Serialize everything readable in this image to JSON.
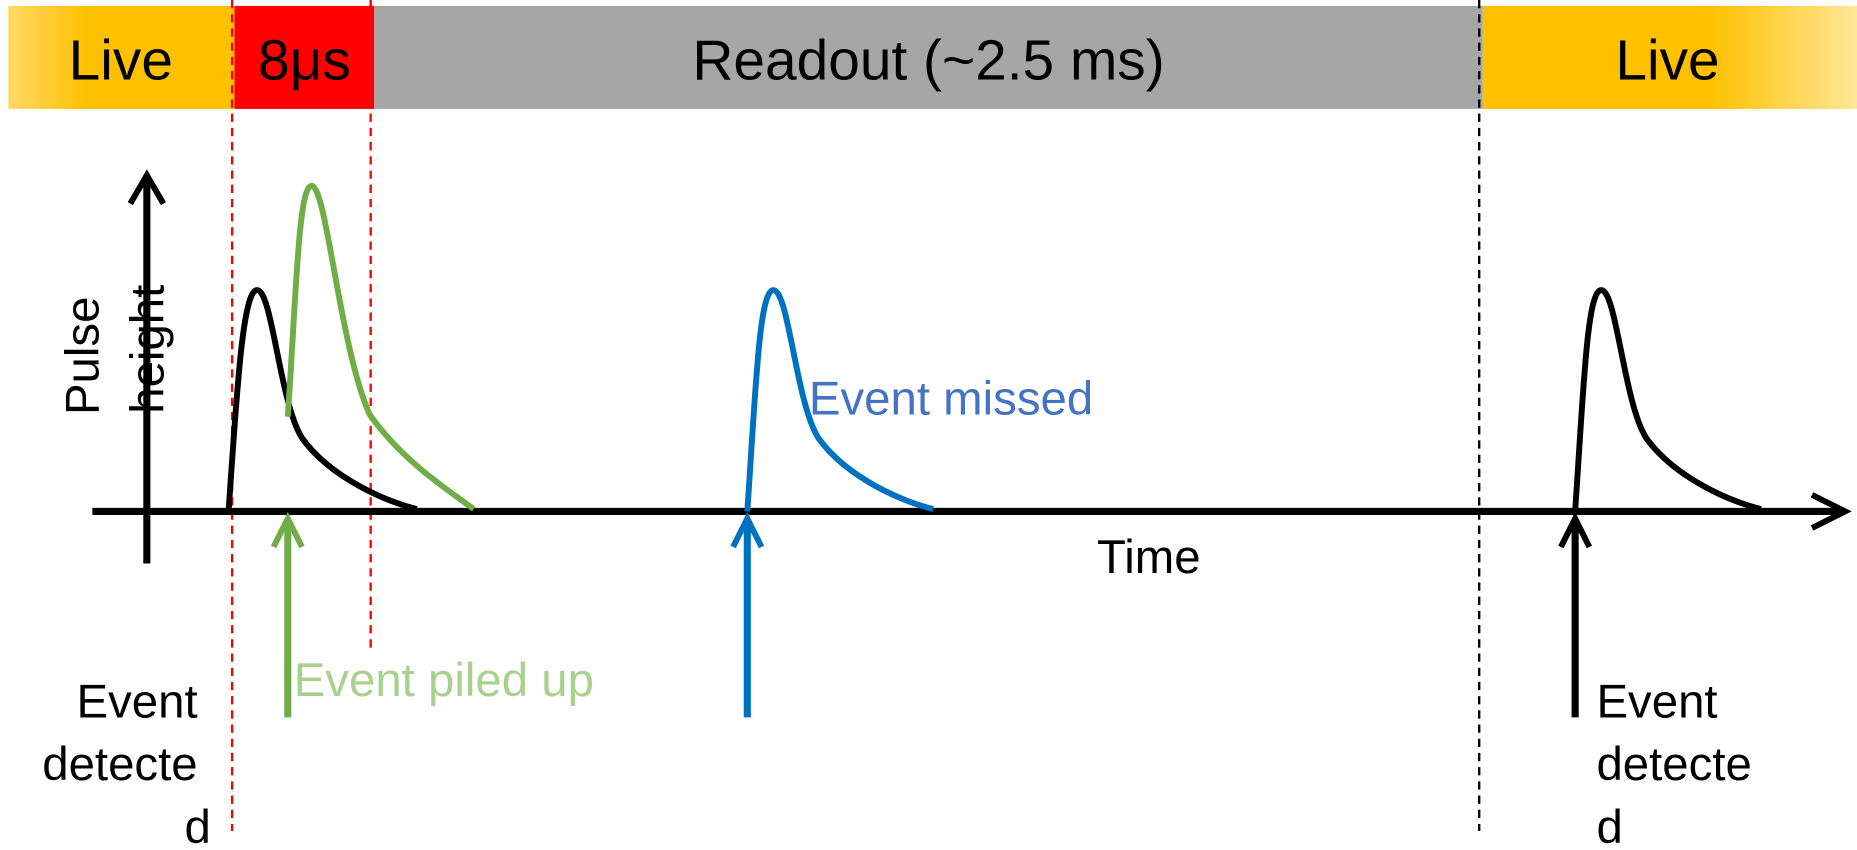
{
  "timeline": {
    "segments": [
      "Live",
      "8μs",
      "Readout (~2.5 ms)",
      "Live"
    ]
  },
  "axes": {
    "y_label": [
      "Pulse",
      "height"
    ],
    "x_label": "Time"
  },
  "annotations": {
    "left_event": [
      "Event",
      "detecte",
      "d"
    ],
    "piled_up": "Event piled up",
    "missed": "Event missed",
    "right_event": [
      "Event",
      "detecte",
      "d"
    ]
  }
}
